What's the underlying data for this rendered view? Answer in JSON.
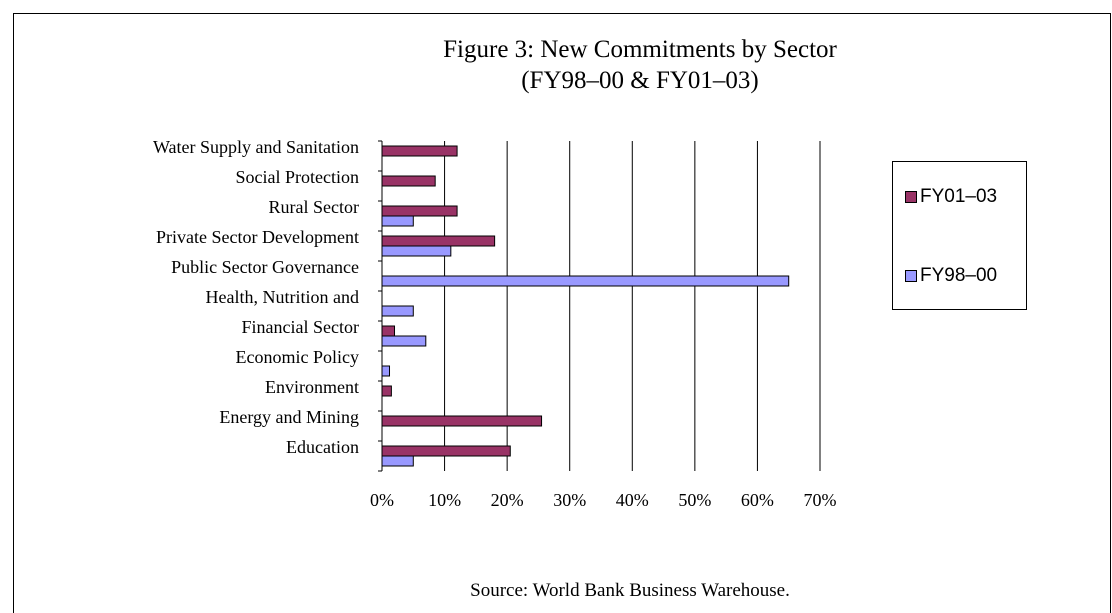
{
  "chart_data": {
    "type": "bar",
    "orientation": "horizontal",
    "title": [
      "Figure 3: New Commitments by Sector",
      "(FY98–00 & FY01–03)"
    ],
    "categories": [
      "Water Supply and Sanitation",
      "Social Protection",
      "Rural Sector",
      "Private Sector Development",
      "Public Sector Governance",
      "Health, Nutrition and",
      "Financial Sector",
      "Economic Policy",
      "Environment",
      "Energy and Mining",
      "Education"
    ],
    "series": [
      {
        "name": "FY01–03",
        "color": "#993366",
        "values": [
          12,
          8.5,
          12,
          18,
          0,
          0,
          2,
          0,
          1.5,
          25.5,
          20.5
        ]
      },
      {
        "name": "FY98–00",
        "color": "#9999ff",
        "values": [
          0,
          0,
          5,
          11,
          65,
          5,
          7,
          1.2,
          0,
          0,
          5
        ]
      }
    ],
    "xlim": [
      0,
      70
    ],
    "xticks": [
      "0%",
      "10%",
      "20%",
      "30%",
      "40%",
      "50%",
      "60%",
      "70%"
    ],
    "xtick_values": [
      0,
      10,
      20,
      30,
      40,
      50,
      60,
      70
    ],
    "grid": true,
    "legend_position": "right"
  },
  "source_note": "Source: World Bank Business Warehouse."
}
